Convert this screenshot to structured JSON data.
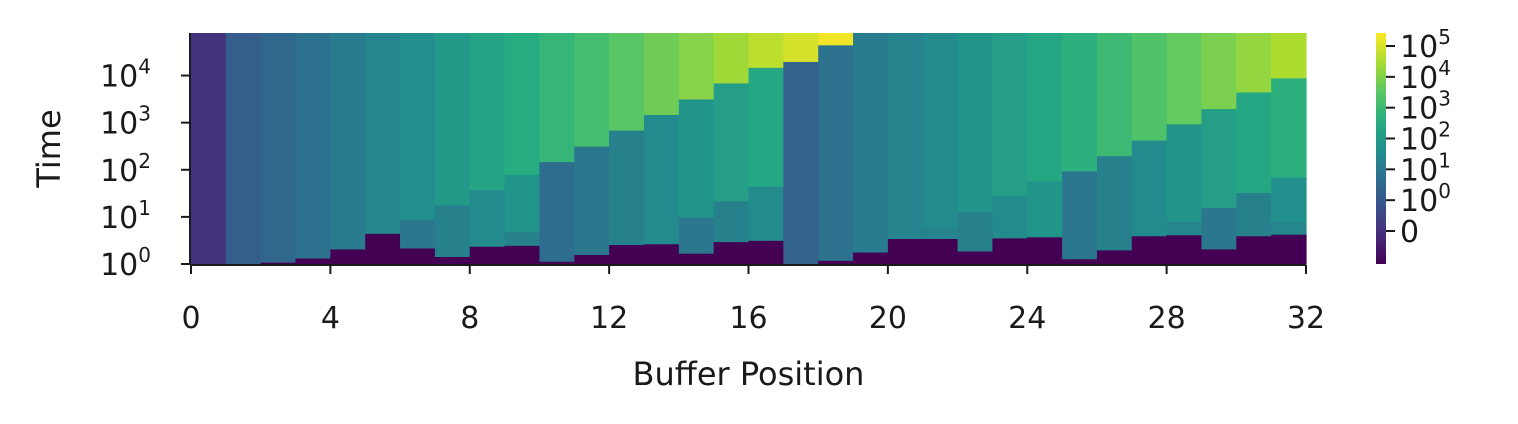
{
  "chart_data": {
    "type": "heatmap",
    "xlabel": "Buffer Position",
    "ylabel": "Time",
    "x_range": [
      0,
      32
    ],
    "x_ticks": [
      "0",
      "4",
      "8",
      "12",
      "16",
      "20",
      "24",
      "28",
      "32"
    ],
    "y_scale": "log",
    "y_range": [
      1,
      80000
    ],
    "y_ticks": [
      {
        "base": "10",
        "exp": "0"
      },
      {
        "base": "10",
        "exp": "1"
      },
      {
        "base": "10",
        "exp": "2"
      },
      {
        "base": "10",
        "exp": "3"
      },
      {
        "base": "10",
        "exp": "4"
      }
    ],
    "colormap": "viridis",
    "colorbar": {
      "scale": "symlog",
      "ticks": [
        {
          "base": "0",
          "exp": ""
        },
        {
          "base": "10",
          "exp": "0"
        },
        {
          "base": "10",
          "exp": "1"
        },
        {
          "base": "10",
          "exp": "2"
        },
        {
          "base": "10",
          "exp": "3"
        },
        {
          "base": "10",
          "exp": "4"
        },
        {
          "base": "10",
          "exp": "5"
        }
      ]
    },
    "columns": [
      [
        {
          "y0": 1,
          "y1": 80000,
          "c": 0.15
        }
      ],
      [
        {
          "y0": 1,
          "y1": 80000,
          "c": 0.3
        }
      ],
      [
        {
          "y0": 1,
          "y1": 1.1,
          "c": 0.0
        },
        {
          "y0": 1.1,
          "y1": 80000,
          "c": 0.34
        }
      ],
      [
        {
          "y0": 1,
          "y1": 1.35,
          "c": 0.0
        },
        {
          "y0": 1.35,
          "y1": 80000,
          "c": 0.38
        }
      ],
      [
        {
          "y0": 1,
          "y1": 2.1,
          "c": 0.0
        },
        {
          "y0": 2.1,
          "y1": 80000,
          "c": 0.42
        }
      ],
      [
        {
          "y0": 1,
          "y1": 4.5,
          "c": 0.0
        },
        {
          "y0": 4.5,
          "y1": 80000,
          "c": 0.46
        }
      ],
      [
        {
          "y0": 1,
          "y1": 2.2,
          "c": 0.0
        },
        {
          "y0": 2.2,
          "y1": 9,
          "c": 0.4
        },
        {
          "y0": 9,
          "y1": 80000,
          "c": 0.5
        }
      ],
      [
        {
          "y0": 1,
          "y1": 1.45,
          "c": 0.0
        },
        {
          "y0": 1.45,
          "y1": 18,
          "c": 0.44
        },
        {
          "y0": 18,
          "y1": 80000,
          "c": 0.54
        }
      ],
      [
        {
          "y0": 1,
          "y1": 2.4,
          "c": 0.0
        },
        {
          "y0": 2.4,
          "y1": 38,
          "c": 0.48
        },
        {
          "y0": 38,
          "y1": 80000,
          "c": 0.58
        }
      ],
      [
        {
          "y0": 1,
          "y1": 2.5,
          "c": 0.0
        },
        {
          "y0": 2.5,
          "y1": 5,
          "c": 0.44
        },
        {
          "y0": 5,
          "y1": 80,
          "c": 0.52
        },
        {
          "y0": 80,
          "y1": 80000,
          "c": 0.62
        }
      ],
      [
        {
          "y0": 1,
          "y1": 1.15,
          "c": 0.0
        },
        {
          "y0": 1.15,
          "y1": 150,
          "c": 0.36
        },
        {
          "y0": 150,
          "y1": 80000,
          "c": 0.66
        }
      ],
      [
        {
          "y0": 1,
          "y1": 1.6,
          "c": 0.0
        },
        {
          "y0": 1.6,
          "y1": 320,
          "c": 0.4
        },
        {
          "y0": 320,
          "y1": 80000,
          "c": 0.7
        }
      ],
      [
        {
          "y0": 1,
          "y1": 2.6,
          "c": 0.0
        },
        {
          "y0": 2.6,
          "y1": 700,
          "c": 0.44
        },
        {
          "y0": 700,
          "y1": 80000,
          "c": 0.74
        }
      ],
      [
        {
          "y0": 1,
          "y1": 2.7,
          "c": 0.0
        },
        {
          "y0": 2.7,
          "y1": 1500,
          "c": 0.48
        },
        {
          "y0": 1500,
          "y1": 80000,
          "c": 0.78
        }
      ],
      [
        {
          "y0": 1,
          "y1": 1.7,
          "c": 0.0
        },
        {
          "y0": 1.7,
          "y1": 10,
          "c": 0.4
        },
        {
          "y0": 10,
          "y1": 3200,
          "c": 0.52
        },
        {
          "y0": 3200,
          "y1": 80000,
          "c": 0.82
        }
      ],
      [
        {
          "y0": 1,
          "y1": 3.0,
          "c": 0.0
        },
        {
          "y0": 3.0,
          "y1": 22,
          "c": 0.44
        },
        {
          "y0": 22,
          "y1": 7000,
          "c": 0.56
        },
        {
          "y0": 7000,
          "y1": 80000,
          "c": 0.86
        }
      ],
      [
        {
          "y0": 1,
          "y1": 3.2,
          "c": 0.0
        },
        {
          "y0": 3.2,
          "y1": 45,
          "c": 0.48
        },
        {
          "y0": 45,
          "y1": 15000,
          "c": 0.6
        },
        {
          "y0": 15000,
          "y1": 80000,
          "c": 0.9
        }
      ],
      [
        {
          "y0": 1,
          "y1": 20000,
          "c": 0.32
        },
        {
          "y0": 20000,
          "y1": 80000,
          "c": 0.94
        }
      ],
      [
        {
          "y0": 1,
          "y1": 1.2,
          "c": 0.0
        },
        {
          "y0": 1.2,
          "y1": 45000,
          "c": 0.38
        },
        {
          "y0": 45000,
          "y1": 80000,
          "c": 0.98
        }
      ],
      [
        {
          "y0": 1,
          "y1": 1.8,
          "c": 0.0
        },
        {
          "y0": 1.8,
          "y1": 80000,
          "c": 0.42
        }
      ],
      [
        {
          "y0": 1,
          "y1": 3.5,
          "c": 0.0
        },
        {
          "y0": 3.5,
          "y1": 80000,
          "c": 0.45
        }
      ],
      [
        {
          "y0": 1,
          "y1": 3.5,
          "c": 0.0
        },
        {
          "y0": 3.5,
          "y1": 6,
          "c": 0.45
        },
        {
          "y0": 6,
          "y1": 80000,
          "c": 0.48
        }
      ],
      [
        {
          "y0": 1,
          "y1": 1.9,
          "c": 0.0
        },
        {
          "y0": 1.9,
          "y1": 13,
          "c": 0.44
        },
        {
          "y0": 13,
          "y1": 80000,
          "c": 0.52
        }
      ],
      [
        {
          "y0": 1,
          "y1": 3.6,
          "c": 0.0
        },
        {
          "y0": 3.6,
          "y1": 28,
          "c": 0.48
        },
        {
          "y0": 28,
          "y1": 80000,
          "c": 0.56
        }
      ],
      [
        {
          "y0": 1,
          "y1": 3.8,
          "c": 0.0
        },
        {
          "y0": 3.8,
          "y1": 58,
          "c": 0.52
        },
        {
          "y0": 58,
          "y1": 80000,
          "c": 0.6
        }
      ],
      [
        {
          "y0": 1,
          "y1": 1.3,
          "c": 0.0
        },
        {
          "y0": 1.3,
          "y1": 95,
          "c": 0.4
        },
        {
          "y0": 95,
          "y1": 80000,
          "c": 0.64
        }
      ],
      [
        {
          "y0": 1,
          "y1": 2.0,
          "c": 0.0
        },
        {
          "y0": 2.0,
          "y1": 200,
          "c": 0.44
        },
        {
          "y0": 200,
          "y1": 80000,
          "c": 0.68
        }
      ],
      [
        {
          "y0": 1,
          "y1": 4.0,
          "c": 0.0
        },
        {
          "y0": 4.0,
          "y1": 430,
          "c": 0.48
        },
        {
          "y0": 430,
          "y1": 80000,
          "c": 0.72
        }
      ],
      [
        {
          "y0": 1,
          "y1": 4.2,
          "c": 0.0
        },
        {
          "y0": 4.2,
          "y1": 8,
          "c": 0.46
        },
        {
          "y0": 8,
          "y1": 950,
          "c": 0.52
        },
        {
          "y0": 950,
          "y1": 80000,
          "c": 0.76
        }
      ],
      [
        {
          "y0": 1,
          "y1": 2.1,
          "c": 0.0
        },
        {
          "y0": 2.1,
          "y1": 16,
          "c": 0.4
        },
        {
          "y0": 16,
          "y1": 2000,
          "c": 0.56
        },
        {
          "y0": 2000,
          "y1": 80000,
          "c": 0.8
        }
      ],
      [
        {
          "y0": 1,
          "y1": 4.0,
          "c": 0.0
        },
        {
          "y0": 4.0,
          "y1": 33,
          "c": 0.44
        },
        {
          "y0": 33,
          "y1": 4500,
          "c": 0.6
        },
        {
          "y0": 4500,
          "y1": 80000,
          "c": 0.84
        }
      ],
      [
        {
          "y0": 1,
          "y1": 4.3,
          "c": 0.0
        },
        {
          "y0": 4.3,
          "y1": 8,
          "c": 0.46
        },
        {
          "y0": 8,
          "y1": 70,
          "c": 0.5
        },
        {
          "y0": 70,
          "y1": 9000,
          "c": 0.64
        },
        {
          "y0": 9000,
          "y1": 80000,
          "c": 0.88
        }
      ]
    ]
  }
}
